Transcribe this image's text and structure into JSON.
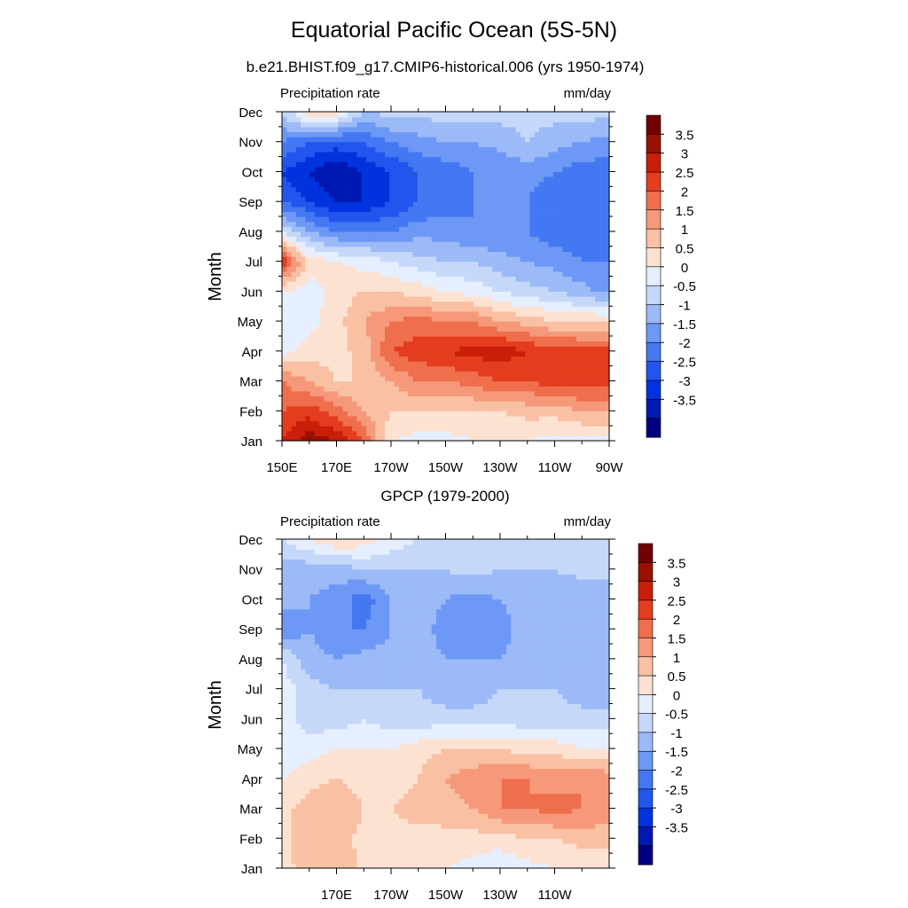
{
  "title": "Equatorial Pacific Ocean (5S-5N)",
  "chart_data": [
    {
      "type": "heatmap",
      "title": "b.e21.BHIST.f09_g17.CMIP6-historical.006 (yrs 1950-1974)",
      "left_label": "Precipitation rate",
      "right_label": "mm/day",
      "ylabel": "Month",
      "x_ticks": [
        "150E",
        "170E",
        "170W",
        "150W",
        "130W",
        "110W",
        "90W"
      ],
      "y_ticks": [
        "Jan",
        "Feb",
        "Mar",
        "Apr",
        "May",
        "Jun",
        "Jul",
        "Aug",
        "Sep",
        "Oct",
        "Nov",
        "Dec"
      ],
      "x_lon": [
        150,
        160,
        170,
        180,
        190,
        200,
        210,
        220,
        230,
        240,
        250,
        260,
        270
      ],
      "grid": [
        [
          3.0,
          3.8,
          3.5,
          2.5,
          0.5,
          0.3,
          0.3,
          0.5,
          0.5,
          0.5,
          0.3,
          0.3,
          0.3
        ],
        [
          2.5,
          2.8,
          2.2,
          1.5,
          1.0,
          1.0,
          1.0,
          1.0,
          1.0,
          1.2,
          1.2,
          1.5,
          1.5
        ],
        [
          2.0,
          1.5,
          1.0,
          1.0,
          1.5,
          2.0,
          2.0,
          2.2,
          2.5,
          2.5,
          2.8,
          2.8,
          2.8
        ],
        [
          0.3,
          0.8,
          0.8,
          1.2,
          2.5,
          2.8,
          3.0,
          3.2,
          3.3,
          3.0,
          2.8,
          2.7,
          2.7
        ],
        [
          0.0,
          0.3,
          0.8,
          1.5,
          2.0,
          2.2,
          2.0,
          2.0,
          1.5,
          1.3,
          1.0,
          1.0,
          1.0
        ],
        [
          0.5,
          0.2,
          0.8,
          1.0,
          1.0,
          0.8,
          0.5,
          0.3,
          0.0,
          -0.3,
          -0.5,
          -0.8,
          -1.2
        ],
        [
          3.0,
          0.8,
          0.5,
          0.3,
          0.0,
          -0.3,
          -0.5,
          -0.5,
          -0.8,
          -1.0,
          -1.2,
          -1.5,
          -1.5
        ],
        [
          0.0,
          -1.0,
          -1.5,
          -1.5,
          -1.5,
          -1.2,
          -1.2,
          -1.5,
          -1.5,
          -1.5,
          -1.8,
          -1.8,
          -1.8
        ],
        [
          -2.0,
          -2.5,
          -3.0,
          -3.0,
          -2.5,
          -2.0,
          -1.8,
          -1.5,
          -1.5,
          -1.5,
          -2.0,
          -2.0,
          -2.0
        ],
        [
          -2.5,
          -3.0,
          -3.5,
          -3.0,
          -2.5,
          -2.0,
          -1.8,
          -1.5,
          -1.5,
          -1.2,
          -1.5,
          -1.8,
          -1.8
        ],
        [
          -1.5,
          -2.0,
          -2.2,
          -2.0,
          -1.5,
          -1.2,
          -1.0,
          -1.0,
          -0.8,
          -0.5,
          -0.8,
          -1.0,
          -1.2
        ],
        [
          -0.5,
          1.0,
          0.8,
          -0.5,
          -0.3,
          -0.3,
          -0.3,
          -0.3,
          -0.3,
          -0.3,
          -0.3,
          -0.3,
          -0.3
        ]
      ],
      "colorbar": {
        "labels": [
          "3.5",
          "3",
          "2.5",
          "2",
          "1.5",
          "1",
          "0.5",
          "0",
          "-0.5",
          "-1",
          "-1.5",
          "-2",
          "-2.5",
          "-3",
          "-3.5"
        ],
        "values": [
          3.5,
          3,
          2.5,
          2,
          1.5,
          1,
          0.5,
          0,
          -0.5,
          -1,
          -1.5,
          -2,
          -2.5,
          -3,
          -3.5
        ]
      }
    },
    {
      "type": "heatmap",
      "title": "GPCP (1979-2000)",
      "left_label": "Precipitation rate",
      "right_label": "mm/day",
      "ylabel": "Month",
      "x_ticks": [
        "170E",
        "170W",
        "150W",
        "130W",
        "110W"
      ],
      "y_ticks": [
        "Jan",
        "Feb",
        "Mar",
        "Apr",
        "May",
        "Jun",
        "Jul",
        "Aug",
        "Sep",
        "Oct",
        "Nov",
        "Dec"
      ],
      "x_lon": [
        150,
        160,
        170,
        180,
        190,
        200,
        210,
        220,
        230,
        240,
        250,
        260,
        270
      ],
      "grid": [
        [
          0.8,
          1.2,
          1.5,
          0.8,
          0.5,
          0.5,
          0.5,
          0.3,
          0.0,
          0.3,
          0.5,
          0.5,
          0.5
        ],
        [
          0.8,
          1.5,
          1.3,
          0.8,
          0.8,
          0.8,
          0.8,
          0.8,
          0.8,
          1.0,
          1.0,
          1.2,
          1.2
        ],
        [
          0.8,
          1.3,
          1.5,
          1.0,
          1.0,
          1.2,
          1.3,
          1.5,
          2.0,
          2.0,
          2.2,
          2.0,
          1.8
        ],
        [
          0.5,
          0.8,
          1.0,
          0.8,
          0.8,
          1.0,
          1.5,
          1.8,
          2.0,
          2.0,
          1.8,
          2.0,
          1.8
        ],
        [
          0.0,
          0.3,
          0.5,
          0.5,
          0.5,
          0.8,
          1.0,
          1.0,
          1.0,
          0.8,
          0.8,
          0.5,
          0.5
        ],
        [
          0.3,
          -0.3,
          -0.3,
          0.0,
          -0.3,
          -0.3,
          -0.3,
          -0.3,
          -0.3,
          -0.3,
          -0.3,
          -0.3,
          -0.3
        ],
        [
          0.3,
          -0.3,
          -0.5,
          -0.5,
          -0.5,
          -0.5,
          -0.8,
          -0.8,
          -0.5,
          -0.5,
          -0.5,
          -0.8,
          -0.8
        ],
        [
          0.0,
          -0.8,
          -1.0,
          -0.8,
          -0.8,
          -0.8,
          -1.0,
          -1.0,
          -1.0,
          -0.8,
          -0.8,
          -1.0,
          -1.0
        ],
        [
          -1.5,
          -1.0,
          -1.5,
          -1.5,
          -1.0,
          -0.8,
          -1.2,
          -1.2,
          -1.2,
          -0.8,
          -0.8,
          -1.0,
          -1.0
        ],
        [
          -0.8,
          -1.0,
          -1.2,
          -1.8,
          -1.0,
          -0.8,
          -1.0,
          -1.2,
          -1.0,
          -0.8,
          -0.8,
          -1.0,
          -1.0
        ],
        [
          -0.8,
          -0.8,
          -0.8,
          -0.5,
          -0.5,
          -0.5,
          -0.5,
          -0.3,
          -0.5,
          -0.5,
          -0.5,
          -0.3,
          -0.3
        ],
        [
          0.0,
          0.5,
          1.0,
          0.8,
          0.3,
          0.0,
          -0.3,
          -0.3,
          -0.3,
          -0.3,
          -0.3,
          -0.3,
          -0.3
        ]
      ],
      "colorbar": {
        "labels": [
          "3.5",
          "3",
          "2.5",
          "2",
          "1.5",
          "1",
          "0.5",
          "0",
          "-0.5",
          "-1",
          "-1.5",
          "-2",
          "-2.5",
          "-3",
          "-3.5"
        ],
        "values": [
          3.5,
          3,
          2.5,
          2,
          1.5,
          1,
          0.5,
          0,
          -0.5,
          -1,
          -1.5,
          -2,
          -2.5,
          -3,
          -3.5
        ]
      }
    }
  ],
  "palette": [
    "#00007f",
    "#0019b3",
    "#0033dd",
    "#2255ee",
    "#4477f2",
    "#6d98f5",
    "#9bbaf7",
    "#c6d8fa",
    "#e6efff",
    "#fde2d2",
    "#f9c0a3",
    "#f5997a",
    "#ef6e4c",
    "#e43d1e",
    "#c91e08",
    "#9a1000",
    "#720000"
  ]
}
